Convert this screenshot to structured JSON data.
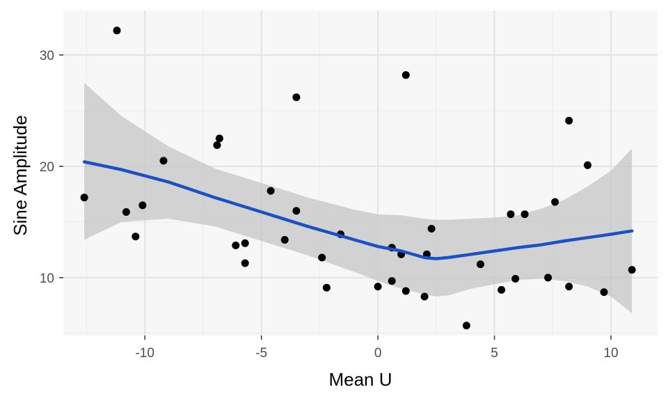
{
  "chart_data": {
    "type": "scatter",
    "title": "",
    "xlabel": "Mean U",
    "ylabel": "Sine Amplitude",
    "xlim": [
      -13.5,
      12.0
    ],
    "ylim": [
      4.8,
      34.0
    ],
    "x_ticks": [
      -10,
      -5,
      0,
      5,
      10
    ],
    "y_ticks": [
      10,
      20,
      30
    ],
    "x_tick_labels": [
      "-10",
      "-5",
      "0",
      "5",
      "10"
    ],
    "y_tick_labels": [
      "10",
      "20",
      "30"
    ],
    "grid": true,
    "legend": "none",
    "point_color": "#000000",
    "points": [
      {
        "x": -12.6,
        "y": 17.2
      },
      {
        "x": -11.2,
        "y": 32.2
      },
      {
        "x": -10.8,
        "y": 15.9
      },
      {
        "x": -10.4,
        "y": 13.7
      },
      {
        "x": -10.1,
        "y": 16.5
      },
      {
        "x": -9.2,
        "y": 20.5
      },
      {
        "x": -6.9,
        "y": 21.9
      },
      {
        "x": -6.8,
        "y": 22.5
      },
      {
        "x": -6.1,
        "y": 12.9
      },
      {
        "x": -5.7,
        "y": 13.1
      },
      {
        "x": -5.7,
        "y": 11.3
      },
      {
        "x": -4.6,
        "y": 17.8
      },
      {
        "x": -4.0,
        "y": 13.4
      },
      {
        "x": -3.5,
        "y": 26.2
      },
      {
        "x": -3.5,
        "y": 16.0
      },
      {
        "x": -2.4,
        "y": 11.8
      },
      {
        "x": -2.2,
        "y": 9.1
      },
      {
        "x": -1.6,
        "y": 13.9
      },
      {
        "x": 0.0,
        "y": 9.2
      },
      {
        "x": 0.6,
        "y": 9.7
      },
      {
        "x": 0.6,
        "y": 12.7
      },
      {
        "x": 1.0,
        "y": 12.1
      },
      {
        "x": 1.2,
        "y": 28.2
      },
      {
        "x": 1.2,
        "y": 8.8
      },
      {
        "x": 2.0,
        "y": 8.3
      },
      {
        "x": 2.1,
        "y": 12.1
      },
      {
        "x": 2.3,
        "y": 14.4
      },
      {
        "x": 3.8,
        "y": 5.7
      },
      {
        "x": 4.4,
        "y": 11.2
      },
      {
        "x": 5.3,
        "y": 8.9
      },
      {
        "x": 5.7,
        "y": 15.7
      },
      {
        "x": 5.9,
        "y": 9.9
      },
      {
        "x": 6.3,
        "y": 15.7
      },
      {
        "x": 7.3,
        "y": 10.0
      },
      {
        "x": 7.6,
        "y": 16.8
      },
      {
        "x": 8.2,
        "y": 24.1
      },
      {
        "x": 8.2,
        "y": 9.2
      },
      {
        "x": 9.0,
        "y": 20.1
      },
      {
        "x": 9.7,
        "y": 8.7
      },
      {
        "x": 10.9,
        "y": 10.7
      }
    ],
    "smooth": {
      "method": "loess",
      "color": "#1a52c6",
      "band_color": "#c6c6c6",
      "x": [
        -12.6,
        -11,
        -9,
        -7,
        -5,
        -3,
        -1,
        0,
        1,
        2,
        2.5,
        3,
        4,
        5,
        6,
        7,
        8,
        9,
        10,
        10.9
      ],
      "y": [
        20.4,
        19.7,
        18.6,
        17.2,
        15.9,
        14.6,
        13.4,
        12.8,
        12.4,
        11.8,
        11.7,
        11.8,
        12.1,
        12.4,
        12.7,
        12.95,
        13.3,
        13.6,
        13.9,
        14.2
      ],
      "ymin": [
        13.4,
        15.0,
        15.3,
        14.6,
        13.3,
        12.0,
        10.5,
        9.7,
        9.0,
        8.5,
        8.3,
        8.4,
        9.0,
        9.4,
        9.8,
        9.9,
        9.7,
        9.2,
        8.3,
        6.8
      ],
      "ymax": [
        27.5,
        24.5,
        21.8,
        19.8,
        18.5,
        17.2,
        16.1,
        15.7,
        15.6,
        15.3,
        15.2,
        15.2,
        15.3,
        15.4,
        15.6,
        16.2,
        17.0,
        18.2,
        19.6,
        21.6
      ]
    }
  }
}
